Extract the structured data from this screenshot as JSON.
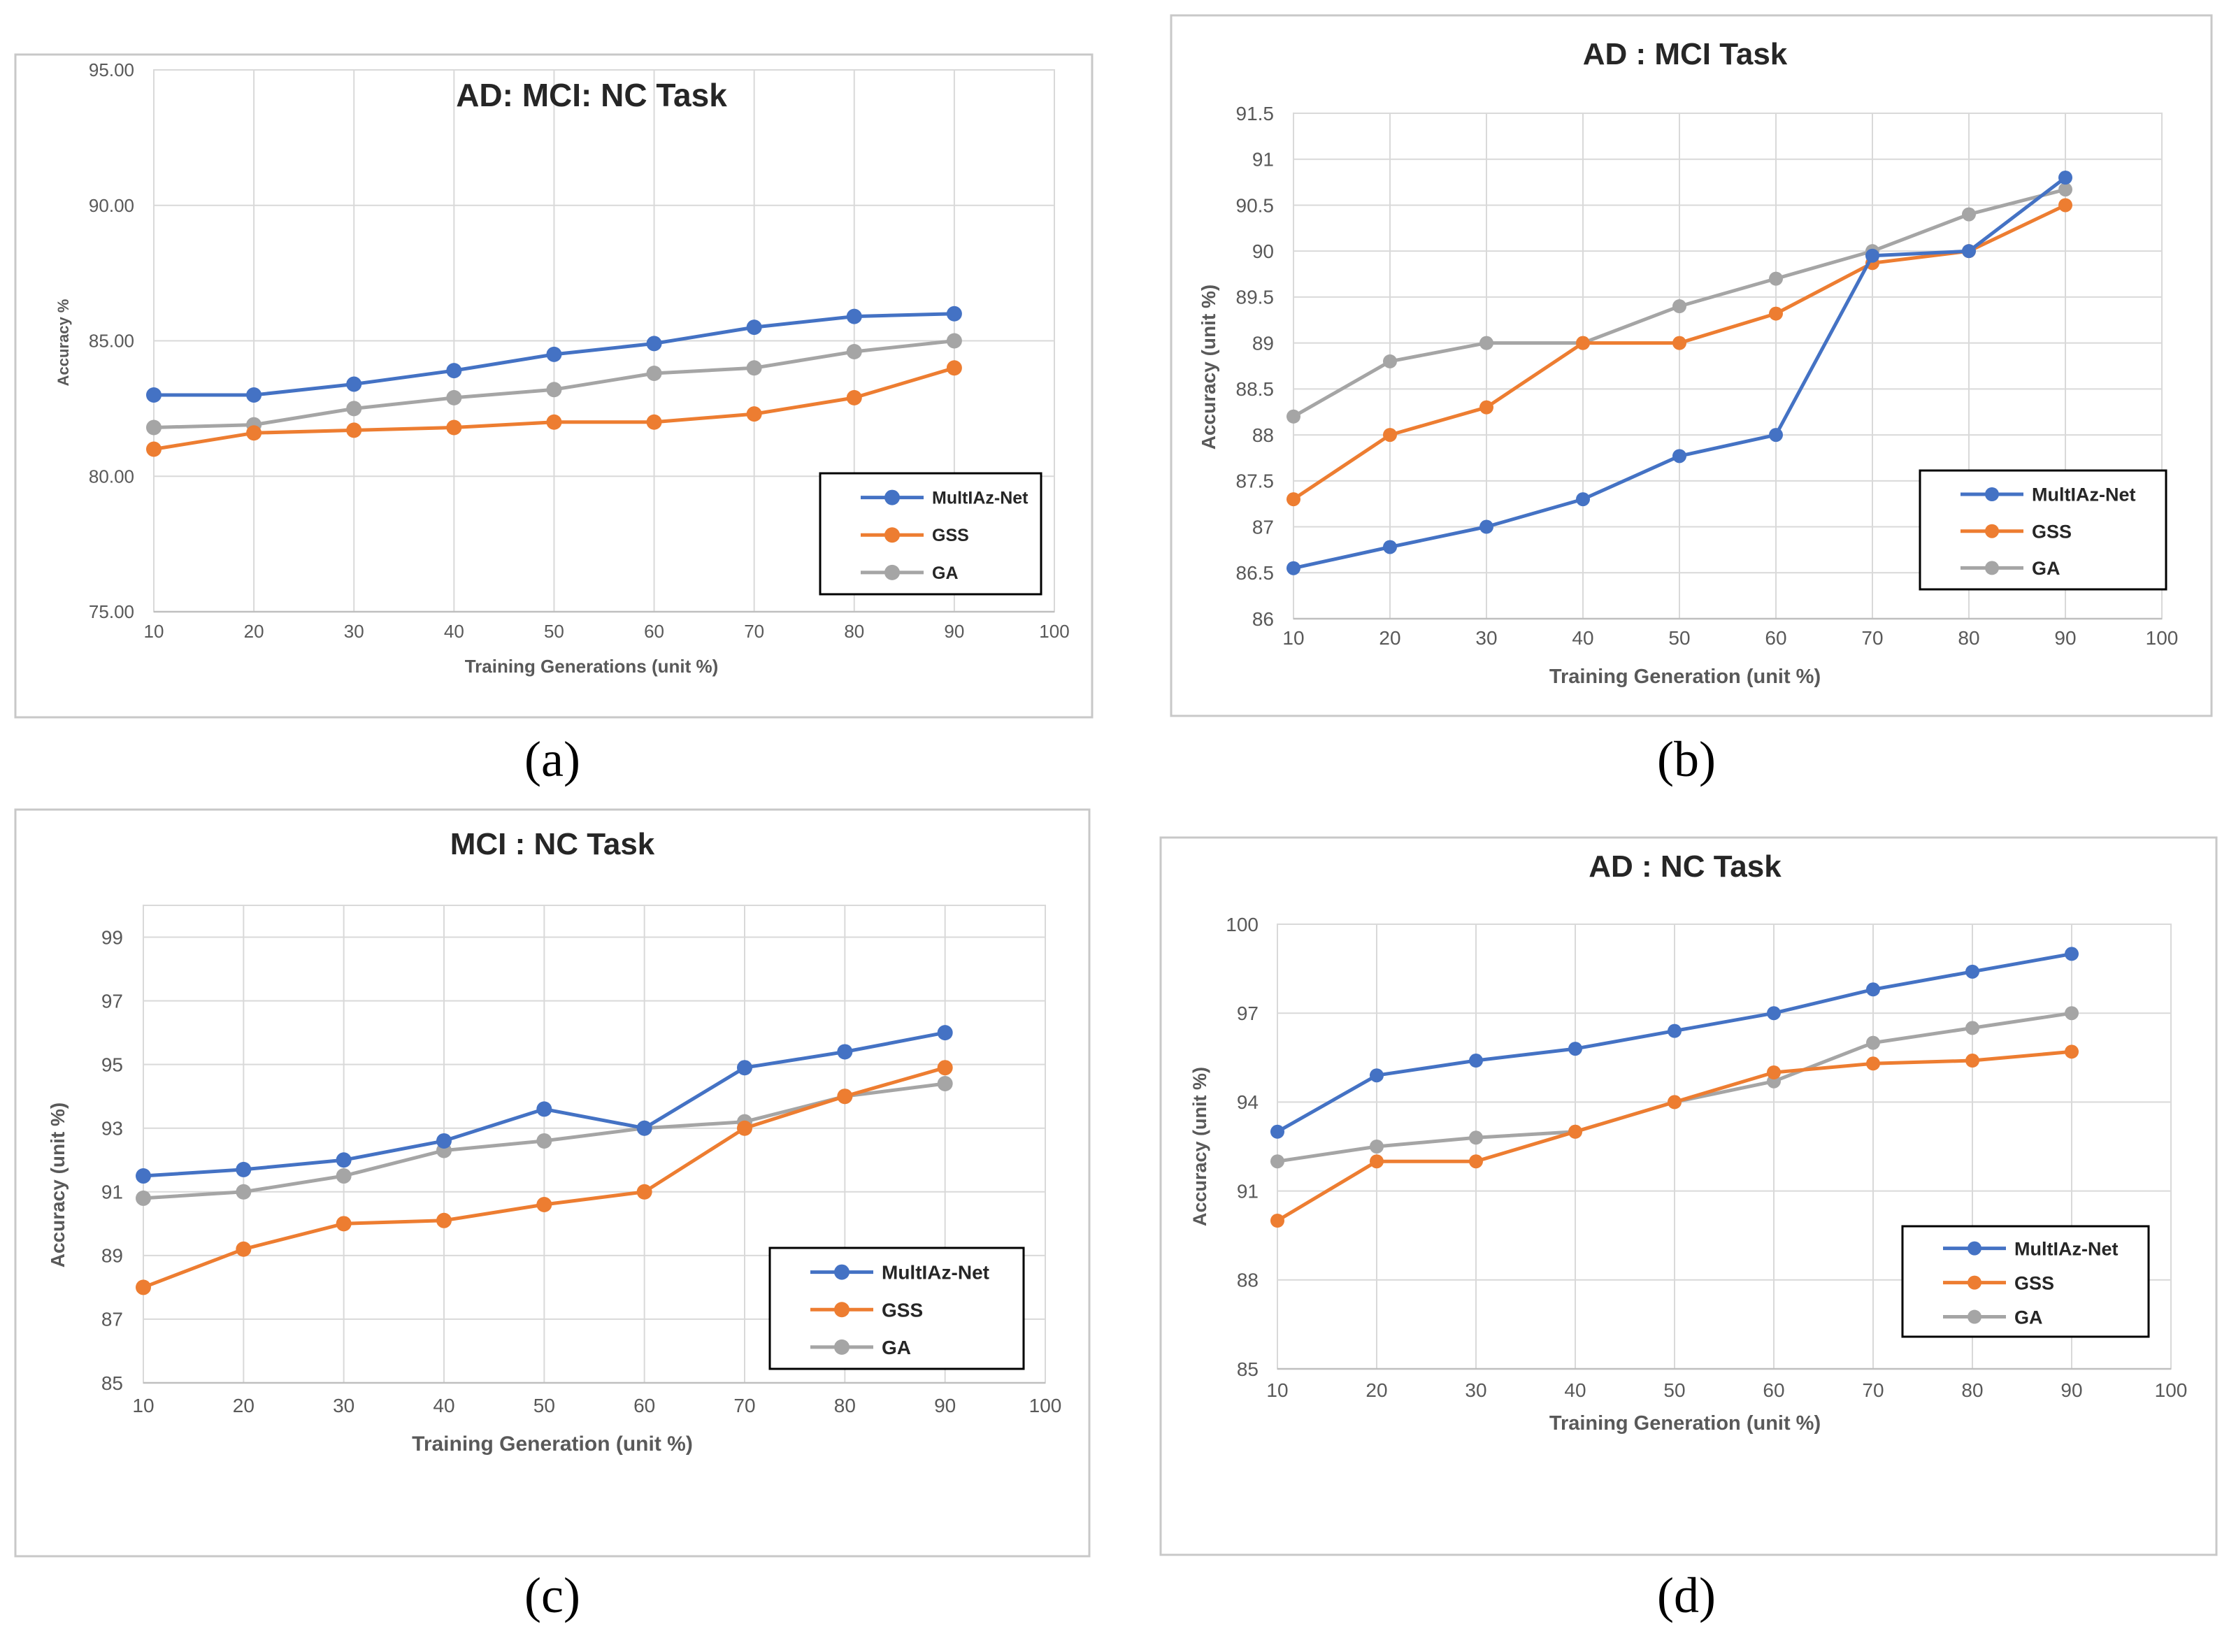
{
  "colors": {
    "MultIAz-Net": "#4472c4",
    "GSS": "#ed7d31",
    "GA": "#a5a5a5"
  },
  "chart_data": [
    {
      "type": "line",
      "caption": "(a)",
      "title": "AD: MCI: NC Task",
      "xlabel": "Training Generations (unit %)",
      "ylabel": "Accuracy %",
      "xlim": [
        10,
        100
      ],
      "ylim": [
        75,
        95
      ],
      "xticks": [
        10,
        20,
        30,
        40,
        50,
        60,
        70,
        80,
        90,
        100
      ],
      "yticks": [
        "75.00",
        "80.00",
        "85.00",
        "90.00",
        "95.00"
      ],
      "ytick_values": [
        75,
        80,
        85,
        90,
        95
      ],
      "grid": true,
      "legend": "bottom-right",
      "x": [
        10,
        20,
        30,
        40,
        50,
        60,
        70,
        80,
        90
      ],
      "series": [
        {
          "name": "MultIAz-Net",
          "values": [
            83.0,
            83.0,
            83.4,
            83.9,
            84.5,
            84.9,
            85.5,
            85.9,
            86.0
          ]
        },
        {
          "name": "GSS",
          "values": [
            81.0,
            81.6,
            81.7,
            81.8,
            82.0,
            82.0,
            82.3,
            82.9,
            84.0
          ]
        },
        {
          "name": "GA",
          "values": [
            81.8,
            81.9,
            82.5,
            82.9,
            83.2,
            83.8,
            84.0,
            84.6,
            85.0
          ]
        }
      ]
    },
    {
      "type": "line",
      "caption": "(b)",
      "title": "AD : MCI Task",
      "xlabel": "Training Generation (unit %)",
      "ylabel": "Accuracy (unit %)",
      "xlim": [
        10,
        100
      ],
      "ylim": [
        86,
        91.5
      ],
      "xticks": [
        10,
        20,
        30,
        40,
        50,
        60,
        70,
        80,
        90,
        100
      ],
      "yticks": [
        "86",
        "86.5",
        "87",
        "87.5",
        "88",
        "88.5",
        "89",
        "89.5",
        "90",
        "90.5",
        "91",
        "91.5"
      ],
      "ytick_values": [
        86,
        86.5,
        87,
        87.5,
        88,
        88.5,
        89,
        89.5,
        90,
        90.5,
        91,
        91.5
      ],
      "grid": true,
      "legend": "bottom-right",
      "x": [
        10,
        20,
        30,
        40,
        50,
        60,
        70,
        80,
        90
      ],
      "series": [
        {
          "name": "MultIAz-Net",
          "values": [
            86.55,
            86.78,
            87.0,
            87.3,
            87.77,
            88.0,
            89.95,
            90.0,
            90.8
          ]
        },
        {
          "name": "GSS",
          "values": [
            87.3,
            88.0,
            88.3,
            89.0,
            89.0,
            89.32,
            89.87,
            90.0,
            90.5
          ]
        },
        {
          "name": "GA",
          "values": [
            88.2,
            88.8,
            89.0,
            89.0,
            89.4,
            89.7,
            90.0,
            90.4,
            90.67
          ]
        }
      ]
    },
    {
      "type": "line",
      "caption": "(c)",
      "title": "MCI : NC Task",
      "xlabel": "Training Generation (unit %)",
      "ylabel": "Accuracy (unit %)",
      "xlim": [
        10,
        100
      ],
      "ylim": [
        85,
        100
      ],
      "xticks": [
        10,
        20,
        30,
        40,
        50,
        60,
        70,
        80,
        90,
        100
      ],
      "yticks": [
        "85",
        "87",
        "89",
        "91",
        "93",
        "95",
        "97",
        "99"
      ],
      "ytick_values": [
        85,
        87,
        89,
        91,
        93,
        95,
        97,
        99
      ],
      "grid": true,
      "legend": "bottom-right",
      "x": [
        10,
        20,
        30,
        40,
        50,
        60,
        70,
        80,
        90
      ],
      "series": [
        {
          "name": "MultIAz-Net",
          "values": [
            91.5,
            91.7,
            92.0,
            92.6,
            93.6,
            93.0,
            94.9,
            95.4,
            96.0
          ]
        },
        {
          "name": "GSS",
          "values": [
            88.0,
            89.2,
            90.0,
            90.1,
            90.6,
            91.0,
            93.0,
            94.0,
            94.9
          ]
        },
        {
          "name": "GA",
          "values": [
            90.8,
            91.0,
            91.5,
            92.3,
            92.6,
            93.0,
            93.2,
            94.0,
            94.4
          ]
        }
      ]
    },
    {
      "type": "line",
      "caption": "(d)",
      "title": "AD : NC  Task",
      "xlabel": "Training Generation (unit %)",
      "ylabel": "Accuracy (unit %)",
      "xlim": [
        10,
        100
      ],
      "ylim": [
        85,
        100
      ],
      "xticks": [
        10,
        20,
        30,
        40,
        50,
        60,
        70,
        80,
        90,
        100
      ],
      "yticks": [
        "85",
        "88",
        "91",
        "94",
        "97",
        "100"
      ],
      "ytick_values": [
        85,
        88,
        91,
        94,
        97,
        100
      ],
      "grid": true,
      "legend": "bottom-right",
      "x": [
        10,
        20,
        30,
        40,
        50,
        60,
        70,
        80,
        90
      ],
      "series": [
        {
          "name": "MultIAz-Net",
          "values": [
            93.0,
            94.9,
            95.4,
            95.8,
            96.4,
            97.0,
            97.8,
            98.4,
            99.0
          ]
        },
        {
          "name": "GSS",
          "values": [
            90.0,
            92.0,
            92.0,
            93.0,
            94.0,
            95.0,
            95.3,
            95.4,
            95.7
          ]
        },
        {
          "name": "GA",
          "values": [
            92.0,
            92.5,
            92.8,
            93.0,
            94.0,
            94.7,
            96.0,
            96.5,
            97.0
          ]
        }
      ]
    }
  ]
}
